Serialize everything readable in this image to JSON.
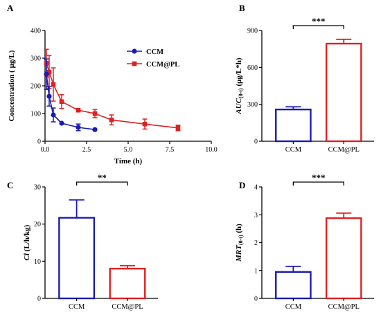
{
  "chart_data": [
    {
      "panel": "A",
      "type": "line",
      "xlabel": "Time (h)",
      "ylabel": "Concentration ( μg/L)",
      "xlim": [
        0,
        10
      ],
      "ylim": [
        0,
        400
      ],
      "xticks": [
        "0.0",
        "2.5",
        "5.0",
        "7.5",
        "10.0"
      ],
      "yticks": [
        "0",
        "100",
        "200",
        "300",
        "400"
      ],
      "legend_position": "top-right",
      "series": [
        {
          "name": "CCM",
          "color": "#1a1ab4",
          "x": [
            0.083,
            0.25,
            0.5,
            1,
            2,
            3
          ],
          "y": [
            242,
            162,
            95,
            65,
            50,
            42
          ],
          "err": [
            55,
            35,
            25,
            0,
            12,
            0
          ]
        },
        {
          "name": "CCM@PL",
          "color": "#e02020",
          "x": [
            0.083,
            0.25,
            0.5,
            1,
            2,
            3,
            4,
            6,
            8
          ],
          "y": [
            282,
            250,
            205,
            143,
            112,
            100,
            77,
            62,
            48
          ],
          "err": [
            50,
            60,
            60,
            25,
            0,
            15,
            18,
            18,
            10
          ]
        }
      ]
    },
    {
      "panel": "B",
      "type": "bar",
      "ylabel": "AUC(0-t) (μg/L*h)",
      "ylabel_main": "AUC",
      "ylabel_sub": "(0-t)",
      "ylabel_rest": " (μg/L*h)",
      "categories": [
        "CCM",
        "CCM@PL"
      ],
      "values": [
        258,
        793
      ],
      "errors": [
        22,
        35
      ],
      "colors": [
        "#1a1ab4",
        "#e02020"
      ],
      "ylim": [
        0,
        900
      ],
      "yticks": [
        "0",
        "300",
        "600",
        "900"
      ],
      "significance": "***"
    },
    {
      "panel": "C",
      "type": "bar",
      "ylabel": "Cl (L/h/kg)",
      "ylabel_main": "Cl",
      "ylabel_sub": "",
      "ylabel_rest": " (L/h/kg)",
      "categories": [
        "CCM",
        "CCM@PL"
      ],
      "values": [
        21.7,
        8.0
      ],
      "errors": [
        4.8,
        0.8
      ],
      "colors": [
        "#1a1ab4",
        "#e02020"
      ],
      "ylim": [
        0,
        30
      ],
      "yticks": [
        "0",
        "10",
        "20",
        "30"
      ],
      "significance": "**"
    },
    {
      "panel": "D",
      "type": "bar",
      "ylabel": "MRT(0-t) (h)",
      "ylabel_main": "MRT",
      "ylabel_sub": "(0-t)",
      "ylabel_rest": " (h)",
      "categories": [
        "CCM",
        "CCM@PL"
      ],
      "values": [
        0.95,
        2.88
      ],
      "errors": [
        0.2,
        0.18
      ],
      "colors": [
        "#1a1ab4",
        "#e02020"
      ],
      "ylim": [
        0,
        4
      ],
      "yticks": [
        "0",
        "1",
        "2",
        "3",
        "4"
      ],
      "significance": "***"
    }
  ]
}
